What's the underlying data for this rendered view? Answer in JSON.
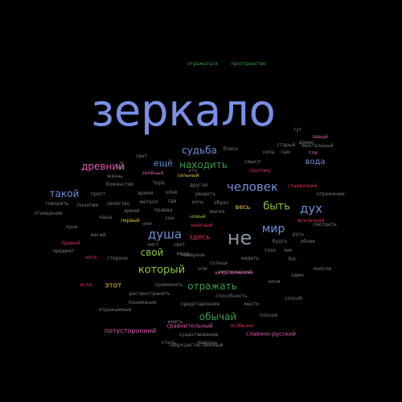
{
  "words": [
    {
      "text": "зеркало",
      "color": "#7b8fe6"
    },
    {
      "text": "не",
      "color": "#8a93a6"
    },
    {
      "text": "человек",
      "color": "#6f8fd6"
    },
    {
      "text": "дух",
      "color": "#6f8fd6"
    },
    {
      "text": "мир",
      "color": "#6f8fd6"
    },
    {
      "text": "быть",
      "color": "#8ac43a"
    },
    {
      "text": "душа",
      "color": "#6f8fd6"
    },
    {
      "text": "который",
      "color": "#8ac43a"
    },
    {
      "text": "древний",
      "color": "#e05ab0"
    },
    {
      "text": "такой",
      "color": "#6f8fd6"
    },
    {
      "text": "ещё",
      "color": "#6f8fd6"
    },
    {
      "text": "судьба",
      "color": "#6f8fd6"
    },
    {
      "text": "находить",
      "color": "#3c9a4a"
    },
    {
      "text": "свой",
      "color": "#8ac43a"
    },
    {
      "text": "отражать",
      "color": "#3c9a4a"
    },
    {
      "text": "обычай",
      "color": "#3c9a4a"
    },
    {
      "text": "этот",
      "color": "#e6c040"
    },
    {
      "text": "вода",
      "color": "#6f8fd6"
    },
    {
      "text": "весь",
      "color": "#e6c040"
    },
    {
      "text": "здесь",
      "color": "#e0305a"
    },
    {
      "text": "потусторонний",
      "color": "#e05ab0"
    },
    {
      "text": "славяно-русский",
      "color": "#e05ab0"
    },
    {
      "text": "сравнительный",
      "color": "#e05ab0"
    },
    {
      "text": "отражаться",
      "color": "#3c9a4a"
    },
    {
      "text": "пространство",
      "color": "#3c9a4a"
    },
    {
      "text": "смысл",
      "color": "#7a7a7a"
    },
    {
      "text": "блеск",
      "color": "#7a7a7a"
    },
    {
      "text": "сила",
      "color": "#7a7a7a"
    },
    {
      "text": "сам",
      "color": "#7a7a7a"
    },
    {
      "text": "поэтому",
      "color": "#e0305a"
    },
    {
      "text": "древо",
      "color": "#7a7a7a"
    },
    {
      "text": "тут",
      "color": "#7a7a7a"
    },
    {
      "text": "левый",
      "color": "#e05ab0"
    },
    {
      "text": "ментальный",
      "color": "#7a7a7a"
    },
    {
      "text": "тля",
      "color": "#e05ab0"
    },
    {
      "text": "старый",
      "color": "#7a7a7a"
    },
    {
      "text": "свет",
      "color": "#7a7a7a"
    },
    {
      "text": "явь",
      "color": "#7a7a7a"
    },
    {
      "text": "жизнь",
      "color": "#7a7a7a"
    },
    {
      "text": "зелёный",
      "color": "#e05ab0"
    },
    {
      "text": "сельный",
      "color": "#e0c040"
    },
    {
      "text": "другой",
      "color": "#7a7a7a"
    },
    {
      "text": "труд",
      "color": "#7a7a7a"
    },
    {
      "text": "боженство",
      "color": "#7a7a7a"
    },
    {
      "text": "увидеть",
      "color": "#7a7a7a"
    },
    {
      "text": "славянский",
      "color": "#e0305a"
    },
    {
      "text": "отражение",
      "color": "#7a7a7a"
    },
    {
      "text": "прост",
      "color": "#7a7a7a"
    },
    {
      "text": "свойство",
      "color": "#7a7a7a"
    },
    {
      "text": "время",
      "color": "#7a7a7a"
    },
    {
      "text": "металл",
      "color": "#7a7a7a"
    },
    {
      "text": "где",
      "color": "#7a7a7a"
    },
    {
      "text": "ночь",
      "color": "#7a7a7a"
    },
    {
      "text": "злой",
      "color": "#7a7a7a"
    },
    {
      "text": "образ",
      "color": "#7a7a7a"
    },
    {
      "text": "правда",
      "color": "#7a7a7a"
    },
    {
      "text": "новый",
      "color": "#8ac43a"
    },
    {
      "text": "первый",
      "color": "#e0c040"
    },
    {
      "text": "сон",
      "color": "#7a7a7a"
    },
    {
      "text": "магия",
      "color": "#7a7a7a"
    },
    {
      "text": "понятие",
      "color": "#7a7a7a"
    },
    {
      "text": "говорить",
      "color": "#7a7a7a"
    },
    {
      "text": "отношение",
      "color": "#7a7a7a"
    },
    {
      "text": "чаша",
      "color": "#7a7a7a"
    },
    {
      "text": "время",
      "color": "#7a7a7a"
    },
    {
      "text": "неясный",
      "color": "#e0305a"
    },
    {
      "text": "ния",
      "color": "#7a7a7a"
    },
    {
      "text": "вещь",
      "color": "#7a7a7a"
    },
    {
      "text": "луна",
      "color": "#7a7a7a"
    },
    {
      "text": "магий",
      "color": "#7a7a7a"
    },
    {
      "text": "правый",
      "color": "#e0305a"
    },
    {
      "text": "предмет",
      "color": "#7a7a7a"
    },
    {
      "text": "хотя",
      "color": "#e0305a"
    },
    {
      "text": "сторона",
      "color": "#7a7a7a"
    },
    {
      "text": "солнце",
      "color": "#7a7a7a"
    },
    {
      "text": "видеть",
      "color": "#7a7a7a"
    },
    {
      "text": "мистический",
      "color": "#7a7a7a"
    },
    {
      "text": "наверное",
      "color": "#7a7a7a"
    },
    {
      "text": "вселенная",
      "color": "#e0305a"
    },
    {
      "text": "бог",
      "color": "#7a7a7a"
    },
    {
      "text": "будто",
      "color": "#7a7a7a"
    },
    {
      "text": "русь",
      "color": "#7a7a7a"
    },
    {
      "text": "облик",
      "color": "#7a7a7a"
    },
    {
      "text": "смотреть",
      "color": "#7a7a7a"
    },
    {
      "text": "один",
      "color": "#7a7a7a"
    },
    {
      "text": "лик",
      "color": "#7a7a7a"
    },
    {
      "text": "многое",
      "color": "#7a7a7a"
    },
    {
      "text": "ночи",
      "color": "#7a7a7a"
    },
    {
      "text": "антропический",
      "color": "#e05ab0"
    },
    {
      "text": "если",
      "color": "#e0305a"
    },
    {
      "text": "применять",
      "color": "#7a7a7a"
    },
    {
      "text": "распространять",
      "color": "#7a7a7a"
    },
    {
      "text": "способность",
      "color": "#7a7a7a"
    },
    {
      "text": "способ",
      "color": "#7a7a7a"
    },
    {
      "text": "понимание",
      "color": "#7a7a7a"
    },
    {
      "text": "представление",
      "color": "#7a7a7a"
    },
    {
      "text": "место",
      "color": "#7a7a7a"
    },
    {
      "text": "или",
      "color": "#7a7a7a"
    },
    {
      "text": "отражаемый",
      "color": "#7a7a7a"
    },
    {
      "text": "иметь",
      "color": "#7a7a7a"
    },
    {
      "text": "особенно",
      "color": "#e0305a"
    },
    {
      "text": "существование",
      "color": "#7a7a7a"
    },
    {
      "text": "сверхъестественный",
      "color": "#7a7a7a"
    },
    {
      "text": "стать",
      "color": "#7a7a7a"
    },
    {
      "text": "помощь",
      "color": "#7a7a7a"
    },
    {
      "text": "плохой",
      "color": "#7a7a7a"
    },
    {
      "text": "свет",
      "color": "#7a7a7a"
    },
    {
      "text": "лист",
      "color": "#7a7a7a"
    },
    {
      "text": "кто",
      "color": "#7a7a7a"
    },
    {
      "text": "сказ",
      "color": "#7a7a7a"
    }
  ]
}
